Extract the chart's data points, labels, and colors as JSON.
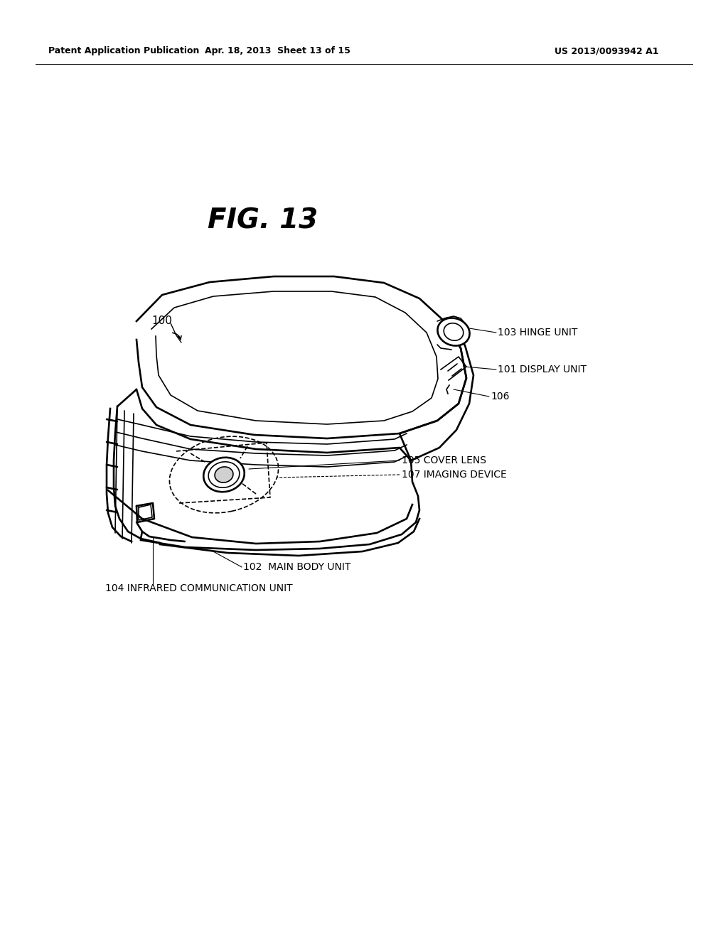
{
  "bg_color": "#ffffff",
  "header_left": "Patent Application Publication",
  "header_mid": "Apr. 18, 2013  Sheet 13 of 15",
  "header_right": "US 2013/0093942 A1",
  "fig_title": "FIG. 13",
  "label_100": "100",
  "label_101": "101 DISPLAY UNIT",
  "label_102": "102  MAIN BODY UNIT",
  "label_103": "103 HINGE UNIT",
  "label_104": "104 INFRARED COMMUNICATION UNIT",
  "label_105": "105 COVER LENS",
  "label_106": "106",
  "label_107": "107 IMAGING DEVICE",
  "line_color": "#000000",
  "text_color": "#000000",
  "lw_main": 1.9,
  "lw_thin": 1.2,
  "lw_hair": 0.8
}
